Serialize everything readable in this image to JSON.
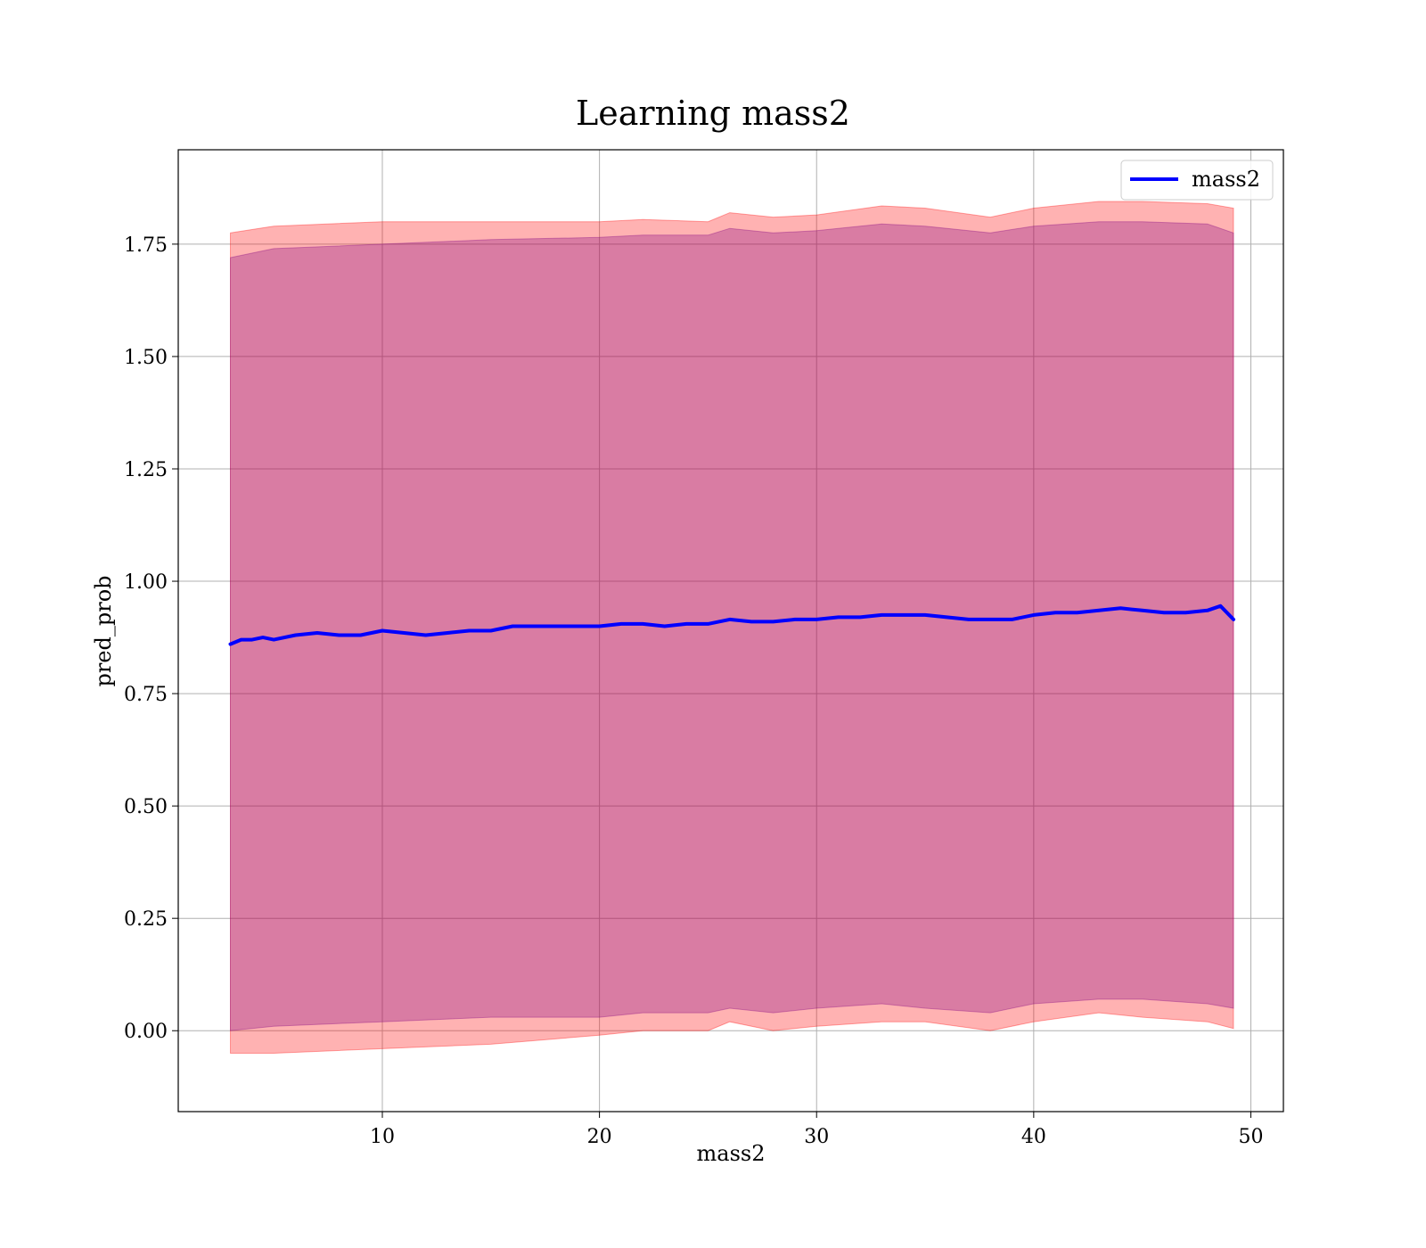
{
  "chart_data": {
    "type": "line",
    "title": "Learning mass2",
    "xlabel": "mass2",
    "ylabel": "pred_prob",
    "xlim": [
      0.6,
      51.5
    ],
    "ylim": [
      -0.18,
      1.96
    ],
    "xticks": [
      10,
      20,
      30,
      40,
      50
    ],
    "xtick_labels": [
      "10",
      "20",
      "30",
      "40",
      "50"
    ],
    "yticks": [
      0.0,
      0.25,
      0.5,
      0.75,
      1.0,
      1.25,
      1.5,
      1.75
    ],
    "ytick_labels": [
      "0.00",
      "0.25",
      "0.50",
      "0.75",
      "1.00",
      "1.25",
      "1.50",
      "1.75"
    ],
    "grid": true,
    "legend_position": "upper right",
    "series": [
      {
        "name": "mass2",
        "color": "#0000ff",
        "x": [
          3.0,
          3.5,
          4.0,
          4.5,
          5.0,
          6.0,
          7.0,
          8.0,
          9.0,
          10.0,
          11.0,
          12.0,
          13.0,
          14.0,
          15.0,
          16.0,
          17.0,
          18.0,
          19.0,
          20.0,
          21.0,
          22.0,
          23.0,
          24.0,
          25.0,
          26.0,
          27.0,
          28.0,
          29.0,
          30.0,
          31.0,
          32.0,
          33.0,
          34.0,
          35.0,
          36.0,
          37.0,
          38.0,
          39.0,
          40.0,
          41.0,
          42.0,
          43.0,
          44.0,
          45.0,
          46.0,
          47.0,
          48.0,
          48.6,
          49.2
        ],
        "y": [
          0.86,
          0.87,
          0.87,
          0.875,
          0.87,
          0.88,
          0.885,
          0.88,
          0.88,
          0.89,
          0.885,
          0.88,
          0.885,
          0.89,
          0.89,
          0.9,
          0.9,
          0.9,
          0.9,
          0.9,
          0.905,
          0.905,
          0.9,
          0.905,
          0.905,
          0.915,
          0.91,
          0.91,
          0.915,
          0.915,
          0.92,
          0.92,
          0.925,
          0.925,
          0.925,
          0.92,
          0.915,
          0.915,
          0.915,
          0.925,
          0.93,
          0.93,
          0.935,
          0.94,
          0.935,
          0.93,
          0.93,
          0.935,
          0.945,
          0.915
        ]
      }
    ],
    "bands": [
      {
        "color": "#ff0000",
        "x": [
          3.0,
          5.0,
          10.0,
          15.0,
          20.0,
          22.0,
          25.0,
          26.0,
          28.0,
          30.0,
          33.0,
          35.0,
          38.0,
          40.0,
          43.0,
          45.0,
          48.0,
          49.2
        ],
        "upper": [
          1.775,
          1.79,
          1.8,
          1.8,
          1.8,
          1.805,
          1.8,
          1.82,
          1.81,
          1.815,
          1.835,
          1.83,
          1.81,
          1.83,
          1.845,
          1.845,
          1.84,
          1.83
        ],
        "lower": [
          -0.05,
          -0.05,
          -0.04,
          -0.03,
          -0.01,
          0.0,
          0.0,
          0.02,
          0.0,
          0.01,
          0.02,
          0.02,
          0.0,
          0.02,
          0.04,
          0.03,
          0.02,
          0.005
        ]
      },
      {
        "color": "#800080",
        "x": [
          3.0,
          5.0,
          10.0,
          15.0,
          20.0,
          22.0,
          25.0,
          26.0,
          28.0,
          30.0,
          33.0,
          35.0,
          38.0,
          40.0,
          43.0,
          45.0,
          48.0,
          49.2
        ],
        "upper": [
          1.72,
          1.74,
          1.75,
          1.76,
          1.765,
          1.77,
          1.77,
          1.785,
          1.775,
          1.78,
          1.795,
          1.79,
          1.775,
          1.79,
          1.8,
          1.8,
          1.795,
          1.775
        ],
        "lower": [
          0.0,
          0.01,
          0.02,
          0.03,
          0.03,
          0.04,
          0.04,
          0.05,
          0.04,
          0.05,
          0.06,
          0.05,
          0.04,
          0.06,
          0.07,
          0.07,
          0.06,
          0.05
        ]
      }
    ]
  }
}
